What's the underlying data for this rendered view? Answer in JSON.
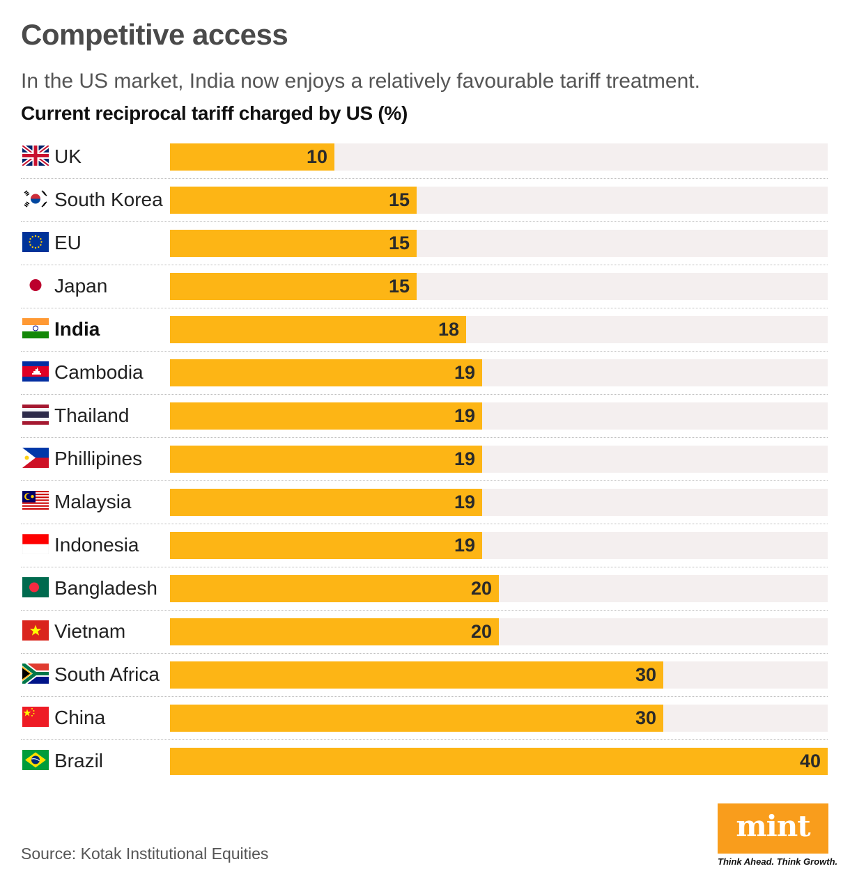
{
  "header": {
    "title": "Competitive access",
    "subtitle": "In the US market, India now enjoys a relatively favourable tariff treatment."
  },
  "chart_data": {
    "type": "bar",
    "orientation": "horizontal",
    "title": "Current reciprocal tariff charged by US (%)",
    "categories": [
      "UK",
      "South Korea",
      "EU",
      "Japan",
      "India",
      "Cambodia",
      "Thailand",
      "Phillipines",
      "Malaysia",
      "Indonesia",
      "Bangladesh",
      "Vietnam",
      "South Africa",
      "China",
      "Brazil"
    ],
    "values": [
      10,
      15,
      15,
      15,
      18,
      19,
      19,
      19,
      19,
      19,
      20,
      20,
      30,
      30,
      40
    ],
    "highlight": "India",
    "xlim": [
      0,
      40
    ],
    "bar_color": "#fdb515",
    "track_color": "#f4efef",
    "flag_icons": [
      "uk-flag-icon",
      "south-korea-flag-icon",
      "eu-flag-icon",
      "japan-flag-icon",
      "india-flag-icon",
      "cambodia-flag-icon",
      "thailand-flag-icon",
      "philippines-flag-icon",
      "malaysia-flag-icon",
      "indonesia-flag-icon",
      "bangladesh-flag-icon",
      "vietnam-flag-icon",
      "south-africa-flag-icon",
      "china-flag-icon",
      "brazil-flag-icon"
    ]
  },
  "footer": {
    "source": "Source: Kotak Institutional Equities",
    "logo": "mint",
    "logo_color": "#f99d1c",
    "tagline": "Think Ahead. Think Growth."
  }
}
